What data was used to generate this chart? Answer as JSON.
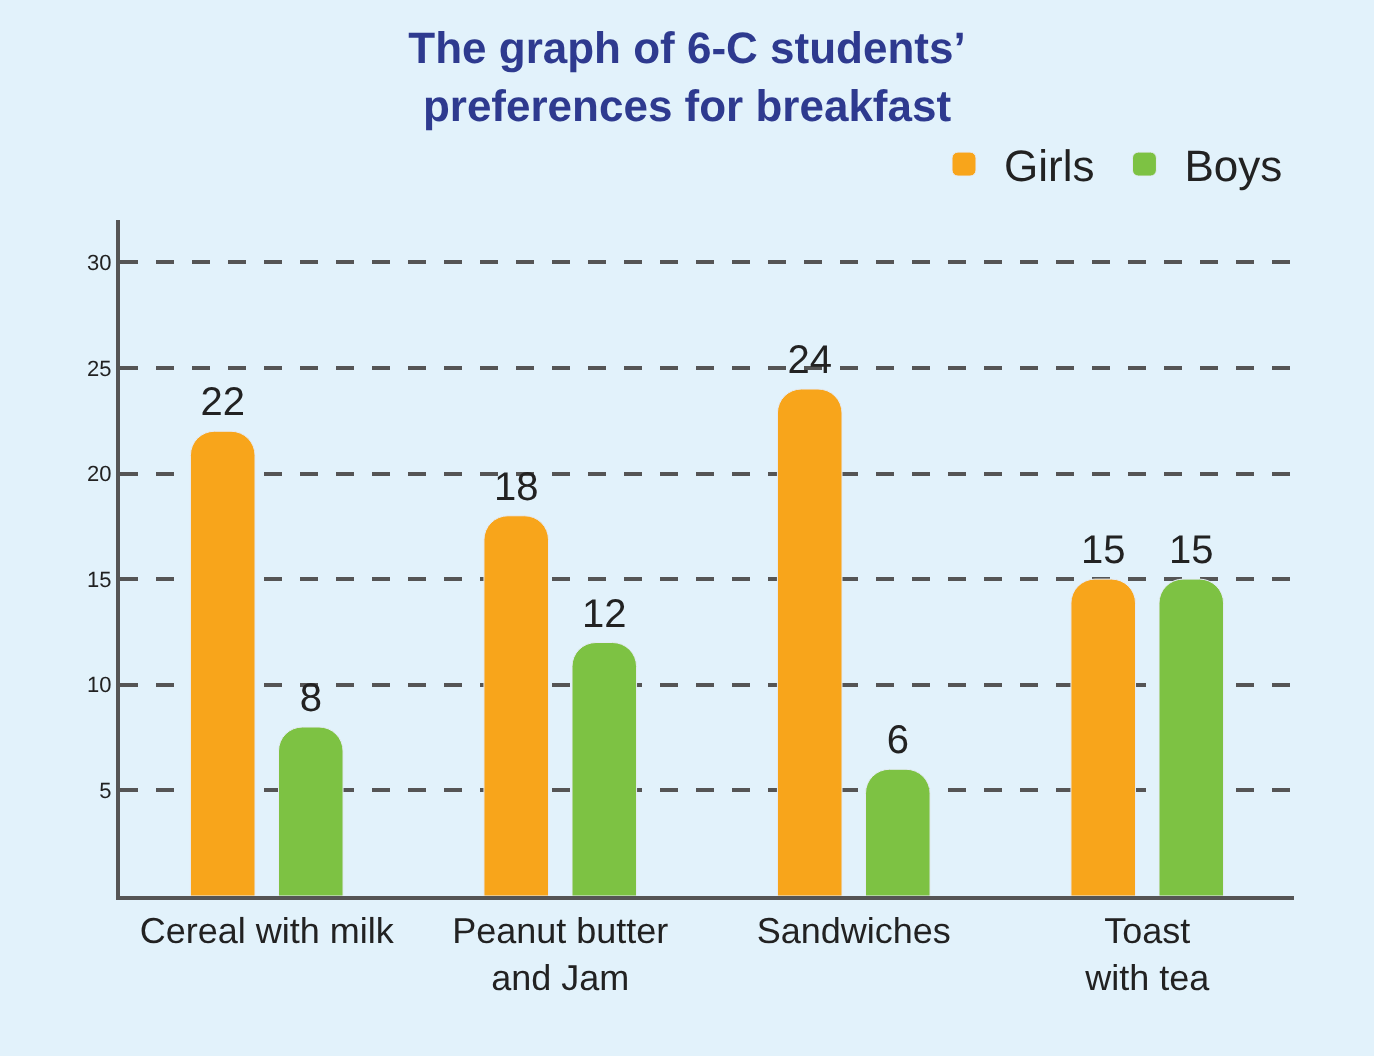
{
  "chart_data": {
    "type": "bar",
    "title": "The graph of 6-C students’\npreferences for breakfast",
    "categories": [
      "Cereal with milk",
      "Peanut butter\nand Jam",
      "Sandwiches",
      "Toast\nwith tea"
    ],
    "series": [
      {
        "name": "Girls",
        "color": "#f8a51b",
        "values": [
          22,
          18,
          24,
          15
        ]
      },
      {
        "name": "Boys",
        "color": "#7dc243",
        "values": [
          8,
          12,
          6,
          15
        ]
      }
    ],
    "ylim": [
      0,
      32
    ],
    "yticks": [
      5,
      10,
      15,
      20,
      25,
      30
    ],
    "grid": "y",
    "legend": "top right",
    "data_labels": true
  }
}
